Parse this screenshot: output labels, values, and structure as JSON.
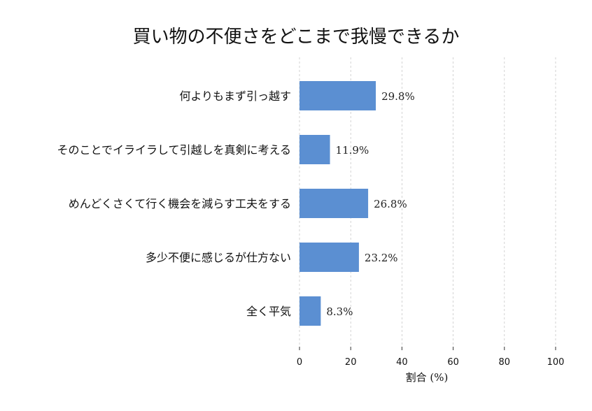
{
  "chart_data": {
    "type": "bar",
    "orientation": "horizontal",
    "title": "買い物の不便さをどこまで我慢できるか",
    "xlabel": "割合 (%)",
    "ylabel": "",
    "xlim": [
      0,
      100
    ],
    "x_ticks": [
      "0",
      "20",
      "40",
      "60",
      "80",
      "100"
    ],
    "grid": "vertical dashed",
    "bar_color": "#5b8fd2",
    "categories": [
      "何よりもまず引っ越す",
      "そのことでイライラして引越しを真剣に考える",
      "めんどくさくて行く機会を減らす工夫をする",
      "多少不便に感じるが仕方ない",
      "全く平気"
    ],
    "values": [
      29.8,
      11.9,
      26.8,
      23.2,
      8.3
    ],
    "value_labels": [
      "29.8%",
      "11.9%",
      "26.8%",
      "23.2%",
      "8.3%"
    ]
  }
}
